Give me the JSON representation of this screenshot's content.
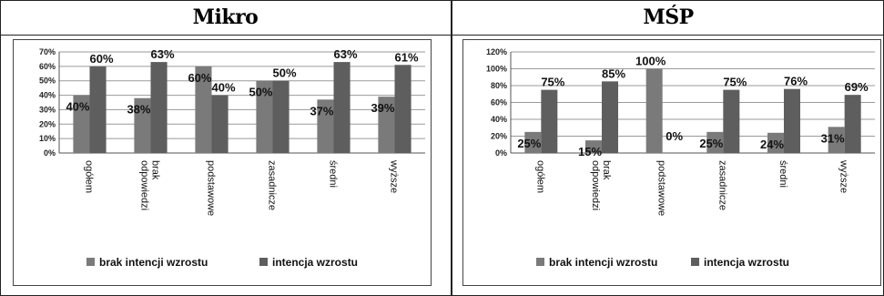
{
  "chart_data": [
    {
      "type": "bar",
      "title": "Mikro",
      "categories": [
        "ogółem",
        "brak odpowiedzi",
        "podstawowe",
        "zasadnicze",
        "średni",
        "wyższe"
      ],
      "series": [
        {
          "name": "brak intencji wzrostu",
          "values": [
            40,
            38,
            60,
            50,
            37,
            39
          ],
          "labels": [
            "40%",
            "38%",
            "60%",
            "50%",
            "37%",
            "39%"
          ]
        },
        {
          "name": "intencja wzrostu",
          "values": [
            60,
            63,
            40,
            50,
            63,
            61
          ],
          "labels": [
            "60%",
            "63%",
            "40%",
            "50%",
            "63%",
            "61%"
          ]
        }
      ],
      "ylim": [
        0,
        70
      ],
      "yticks": [
        "0%",
        "10%",
        "20%",
        "30%",
        "40%",
        "50%",
        "60%",
        "70%"
      ],
      "grid": true,
      "legend_position": "bottom",
      "colors": [
        "#7a7a7a",
        "#5e5e5e"
      ]
    },
    {
      "type": "bar",
      "title": "MŚP",
      "categories": [
        "ogółem",
        "brak odpowiedzi",
        "podstawowe",
        "zasadnicze",
        "średni",
        "wyższe"
      ],
      "series": [
        {
          "name": "brak intencji wzrostu",
          "values": [
            25,
            15,
            100,
            25,
            24,
            31
          ],
          "labels": [
            "25%",
            "15%",
            "100%",
            "25%",
            "24%",
            "31%"
          ]
        },
        {
          "name": "intencja wzrostu",
          "values": [
            75,
            85,
            0,
            75,
            76,
            69
          ],
          "labels": [
            "75%",
            "85%",
            "0%",
            "75%",
            "76%",
            "69%"
          ]
        }
      ],
      "ylim": [
        0,
        120
      ],
      "yticks": [
        "0%",
        "20%",
        "40%",
        "60%",
        "80%",
        "100%",
        "120%"
      ],
      "grid": true,
      "legend_position": "bottom",
      "colors": [
        "#7a7a7a",
        "#5e5e5e"
      ]
    }
  ]
}
